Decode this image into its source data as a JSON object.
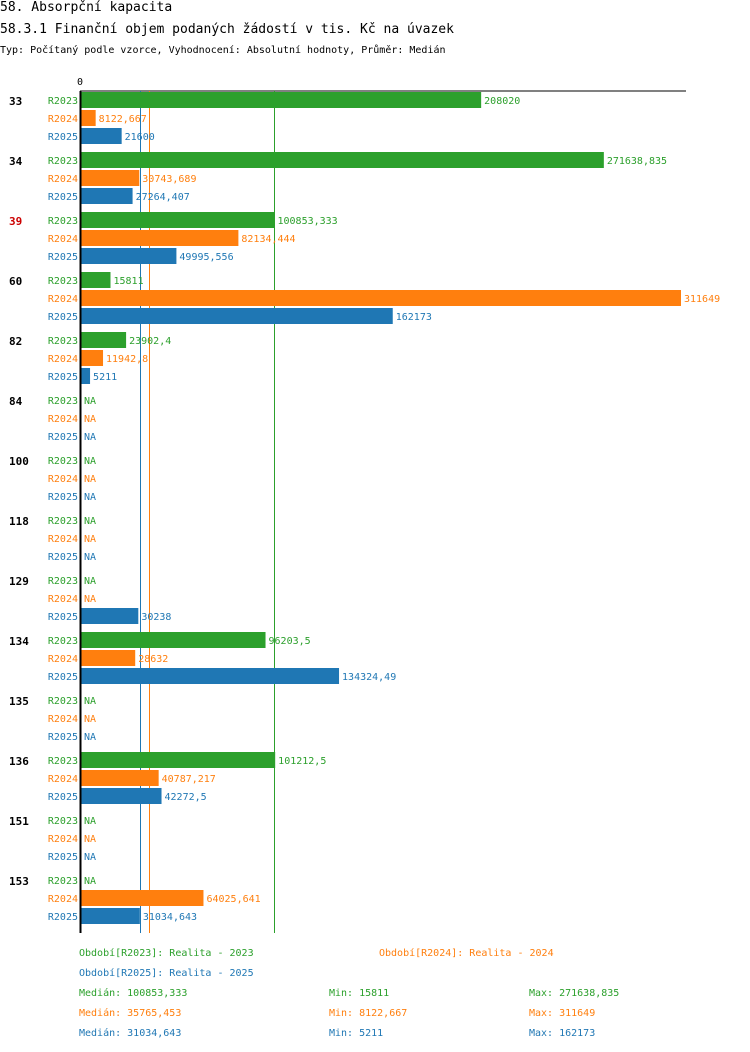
{
  "header": {
    "section_title": "58. Absorpční kapacita",
    "chart_title": "58.3.1 Finanční objem podaných žádostí v tis. Kč na úvazek",
    "subtitle": "Typ: Počítaný podle vzorce, Vyhodnocení: Absolutní hodnoty, Průměr: Medián"
  },
  "colors": {
    "R2023": "#2ca02c",
    "R2024": "#ff7f0e",
    "R2025": "#1f77b4",
    "highlight": "#cc0000",
    "axis": "#000000"
  },
  "chart_data": {
    "type": "bar",
    "orientation": "horizontal",
    "xlim": [
      0,
      311649
    ],
    "x_tick_labels": [
      "0"
    ],
    "na_label": "NA",
    "series_names": [
      "R2023",
      "R2024",
      "R2025"
    ],
    "categories": [
      {
        "label": "33",
        "highlight": false,
        "values": [
          208020,
          8122.667,
          21600
        ],
        "labels": [
          "208020",
          "8122,667",
          "21600"
        ]
      },
      {
        "label": "34",
        "highlight": false,
        "values": [
          271638.835,
          30743.689,
          27264.407
        ],
        "labels": [
          "271638,835",
          "30743,689",
          "27264,407"
        ]
      },
      {
        "label": "39",
        "highlight": true,
        "values": [
          100853.333,
          82134.444,
          49995.556
        ],
        "labels": [
          "100853,333",
          "82134,444",
          "49995,556"
        ]
      },
      {
        "label": "60",
        "highlight": false,
        "values": [
          15811,
          311649,
          162173
        ],
        "labels": [
          "15811",
          "311649",
          "162173"
        ]
      },
      {
        "label": "82",
        "highlight": false,
        "values": [
          23902.4,
          11942.8,
          5211
        ],
        "labels": [
          "23902,4",
          "11942,8",
          "5211"
        ]
      },
      {
        "label": "84",
        "highlight": false,
        "values": [
          null,
          null,
          null
        ],
        "labels": [
          null,
          null,
          null
        ]
      },
      {
        "label": "100",
        "highlight": false,
        "values": [
          null,
          null,
          null
        ],
        "labels": [
          null,
          null,
          null
        ]
      },
      {
        "label": "118",
        "highlight": false,
        "values": [
          null,
          null,
          null
        ],
        "labels": [
          null,
          null,
          null
        ]
      },
      {
        "label": "129",
        "highlight": false,
        "values": [
          null,
          null,
          30238
        ],
        "labels": [
          null,
          null,
          "30238"
        ]
      },
      {
        "label": "134",
        "highlight": false,
        "values": [
          96203.5,
          28632,
          134324.49
        ],
        "labels": [
          "96203,5",
          "28632",
          "134324,49"
        ]
      },
      {
        "label": "135",
        "highlight": false,
        "values": [
          null,
          null,
          null
        ],
        "labels": [
          null,
          null,
          null
        ]
      },
      {
        "label": "136",
        "highlight": false,
        "values": [
          101212.5,
          40787.217,
          42272.5
        ],
        "labels": [
          "101212,5",
          "40787,217",
          "42272,5"
        ]
      },
      {
        "label": "151",
        "highlight": false,
        "values": [
          null,
          null,
          null
        ],
        "labels": [
          null,
          null,
          null
        ]
      },
      {
        "label": "153",
        "highlight": false,
        "values": [
          null,
          64025.641,
          31034.643
        ],
        "labels": [
          null,
          "64025,641",
          "31034,643"
        ]
      }
    ],
    "median_lines": [
      {
        "series": "R2023",
        "value": 100853.333
      },
      {
        "series": "R2024",
        "value": 35765.453
      },
      {
        "series": "R2025",
        "value": 31034.643
      }
    ]
  },
  "legend": {
    "items": [
      {
        "series": "R2023",
        "text": "Období[R2023]: Realita - 2023"
      },
      {
        "series": "R2024",
        "text": "Období[R2024]: Realita - 2024"
      },
      {
        "series": "R2025",
        "text": "Období[R2025]: Realita - 2025"
      }
    ]
  },
  "stats": [
    {
      "series": "R2023",
      "median": "Medián: 100853,333",
      "min": "Min: 15811",
      "max": "Max: 271638,835"
    },
    {
      "series": "R2024",
      "median": "Medián: 35765,453",
      "min": "Min: 8122,667",
      "max": "Max: 311649"
    },
    {
      "series": "R2025",
      "median": "Medián: 31034,643",
      "min": "Min: 5211",
      "max": "Max: 162173"
    }
  ]
}
